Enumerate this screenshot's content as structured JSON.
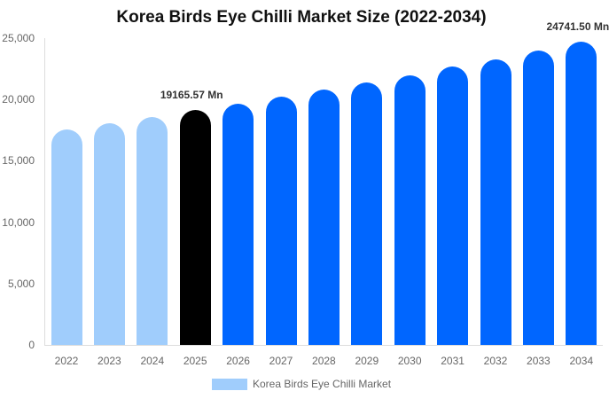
{
  "chart_data": {
    "type": "bar",
    "title": "Korea Birds Eye Chilli Market Size (2022-2034)",
    "xlabel": "",
    "ylabel": "",
    "ylim": [
      0,
      25000
    ],
    "yticks": [
      "0",
      "5,000",
      "10,000",
      "15,000",
      "20,000",
      "25,000"
    ],
    "grid": false,
    "legend_position": "bottom",
    "categories": [
      "2022",
      "2023",
      "2024",
      "2025",
      "2026",
      "2027",
      "2028",
      "2029",
      "2030",
      "2031",
      "2032",
      "2033",
      "2034"
    ],
    "series": [
      {
        "name": "Korea Birds Eye Chilli Market",
        "values": [
          17560,
          18060,
          18570,
          19165.57,
          19650,
          20200,
          20800,
          21400,
          22000,
          22700,
          23300,
          24000,
          24741.5
        ]
      }
    ],
    "bar_colors": [
      "#a0cdfc",
      "#a0cdfc",
      "#a0cdfc",
      "#000000",
      "#0066ff",
      "#0066ff",
      "#0066ff",
      "#0066ff",
      "#0066ff",
      "#0066ff",
      "#0066ff",
      "#0066ff",
      "#0066ff"
    ],
    "annotations": [
      {
        "category": "2025",
        "text": "19165.57 Mn"
      },
      {
        "category": "2034",
        "text": "24741.50 Mn"
      }
    ]
  },
  "legend": {
    "label": "Korea Birds Eye Chilli Market",
    "color": "#a0cdfc"
  }
}
